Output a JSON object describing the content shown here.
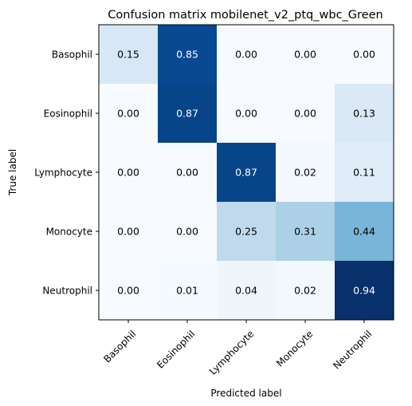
{
  "chart_data": {
    "type": "heatmap",
    "title": "Confusion matrix mobilenet_v2_ptq_wbc_Green",
    "xlabel": "Predicted label",
    "ylabel": "True label",
    "x_categories": [
      "Basophil",
      "Eosinophil",
      "Lymphocyte",
      "Monocyte",
      "Neutrophil"
    ],
    "y_categories": [
      "Basophil",
      "Eosinophil",
      "Lymphocyte",
      "Monocyte",
      "Neutrophil"
    ],
    "values": [
      [
        0.15,
        0.85,
        0.0,
        0.0,
        0.0
      ],
      [
        0.0,
        0.87,
        0.0,
        0.0,
        0.13
      ],
      [
        0.0,
        0.0,
        0.87,
        0.02,
        0.11
      ],
      [
        0.0,
        0.0,
        0.25,
        0.31,
        0.44
      ],
      [
        0.0,
        0.01,
        0.04,
        0.02,
        0.94
      ]
    ],
    "colormap": "Blues",
    "value_range": [
      0,
      0.94
    ],
    "grid": false
  }
}
